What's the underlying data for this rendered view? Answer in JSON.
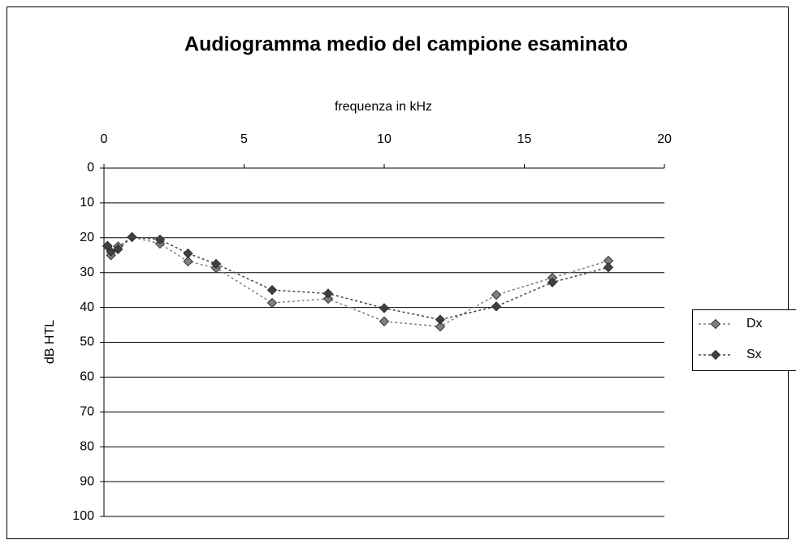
{
  "chart_data": {
    "type": "line",
    "title": "Audiogramma medio del campione esaminato",
    "x_label": "frequenza in kHz",
    "y_label": "dB HTL",
    "x": [
      0.125,
      0.25,
      0.5,
      1,
      2,
      3,
      4,
      6,
      8,
      10,
      12,
      14,
      16,
      18
    ],
    "series": [
      {
        "name": "Dx",
        "color": "#808080",
        "values": [
          22.5,
          25,
          22.5,
          19.8,
          21.7,
          26.8,
          28.7,
          38.7,
          37.5,
          44,
          45.5,
          36.4,
          31.5,
          26.6
        ]
      },
      {
        "name": "Sx",
        "color": "#404040",
        "values": [
          22.3,
          24,
          23.3,
          19.8,
          20.5,
          24.5,
          27.5,
          35,
          36,
          40.2,
          43.5,
          39.7,
          32.8,
          28.5
        ]
      }
    ],
    "xlim": [
      0,
      20
    ],
    "xticks": [
      0,
      5,
      10,
      15,
      20
    ],
    "x_axis_position": "top",
    "ylim": [
      0,
      100
    ],
    "yticks": [
      0,
      10,
      20,
      30,
      40,
      50,
      60,
      70,
      80,
      90,
      100
    ],
    "y_inverted": true,
    "grid": true,
    "legend": "right"
  }
}
